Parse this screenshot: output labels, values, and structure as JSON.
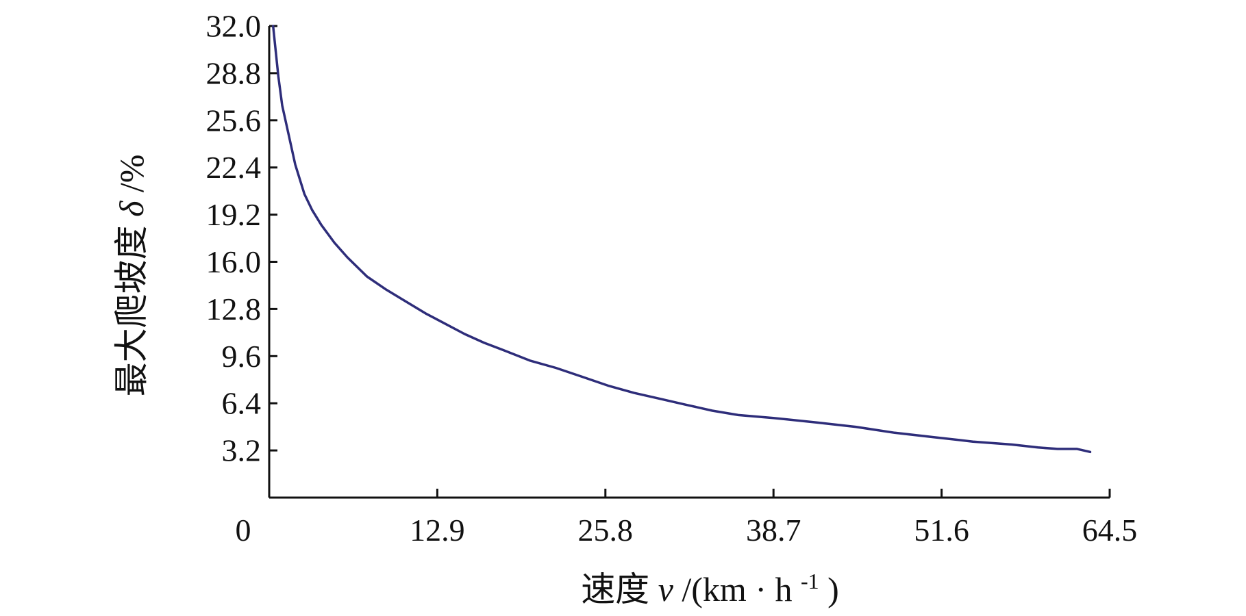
{
  "chart_data": {
    "type": "line",
    "title": "",
    "xlabel": {
      "prefix": "速度",
      "var": "v",
      "unit_open": "/(km · h",
      "unit_sup": "-1",
      "unit_close": ")"
    },
    "ylabel": {
      "prefix": "最大爬坡度",
      "var": "δ",
      "unit": "/%"
    },
    "xlim": [
      0,
      64.5
    ],
    "ylim": [
      0,
      32.0
    ],
    "x_ticks": [
      "0",
      "12.9",
      "25.8",
      "38.7",
      "51.6",
      "64.5"
    ],
    "x_tick_values": [
      0,
      12.9,
      25.8,
      38.7,
      51.6,
      64.5
    ],
    "y_ticks": [
      "3.2",
      "6.4",
      "9.6",
      "12.8",
      "16.0",
      "19.2",
      "22.4",
      "25.6",
      "28.8",
      "32.0"
    ],
    "y_tick_values": [
      3.2,
      6.4,
      9.6,
      12.8,
      16.0,
      19.2,
      22.4,
      25.6,
      28.8,
      32.0
    ],
    "grid": false,
    "series": [
      {
        "color": "#2e2d7a",
        "x": [
          0.3,
          0.7,
          1.0,
          1.5,
          2.0,
          2.7,
          3.3,
          4.0,
          5.0,
          6.0,
          7.5,
          9.0,
          10.5,
          12.0,
          13.5,
          15.0,
          16.5,
          18.0,
          20.0,
          22.0,
          24.0,
          26.0,
          28.0,
          30.0,
          32.0,
          34.0,
          36.0,
          38.7,
          42.0,
          45.0,
          48.0,
          51.0,
          54.0,
          57.0,
          59.0,
          60.5,
          62.0,
          63.0
        ],
        "y": [
          32.0,
          28.6,
          26.6,
          24.6,
          22.6,
          20.6,
          19.5,
          18.5,
          17.3,
          16.3,
          15.0,
          14.1,
          13.3,
          12.5,
          11.8,
          11.1,
          10.5,
          10.0,
          9.3,
          8.8,
          8.2,
          7.6,
          7.1,
          6.7,
          6.3,
          5.9,
          5.6,
          5.4,
          5.1,
          4.8,
          4.4,
          4.1,
          3.8,
          3.6,
          3.4,
          3.3,
          3.3,
          3.1
        ]
      }
    ]
  }
}
